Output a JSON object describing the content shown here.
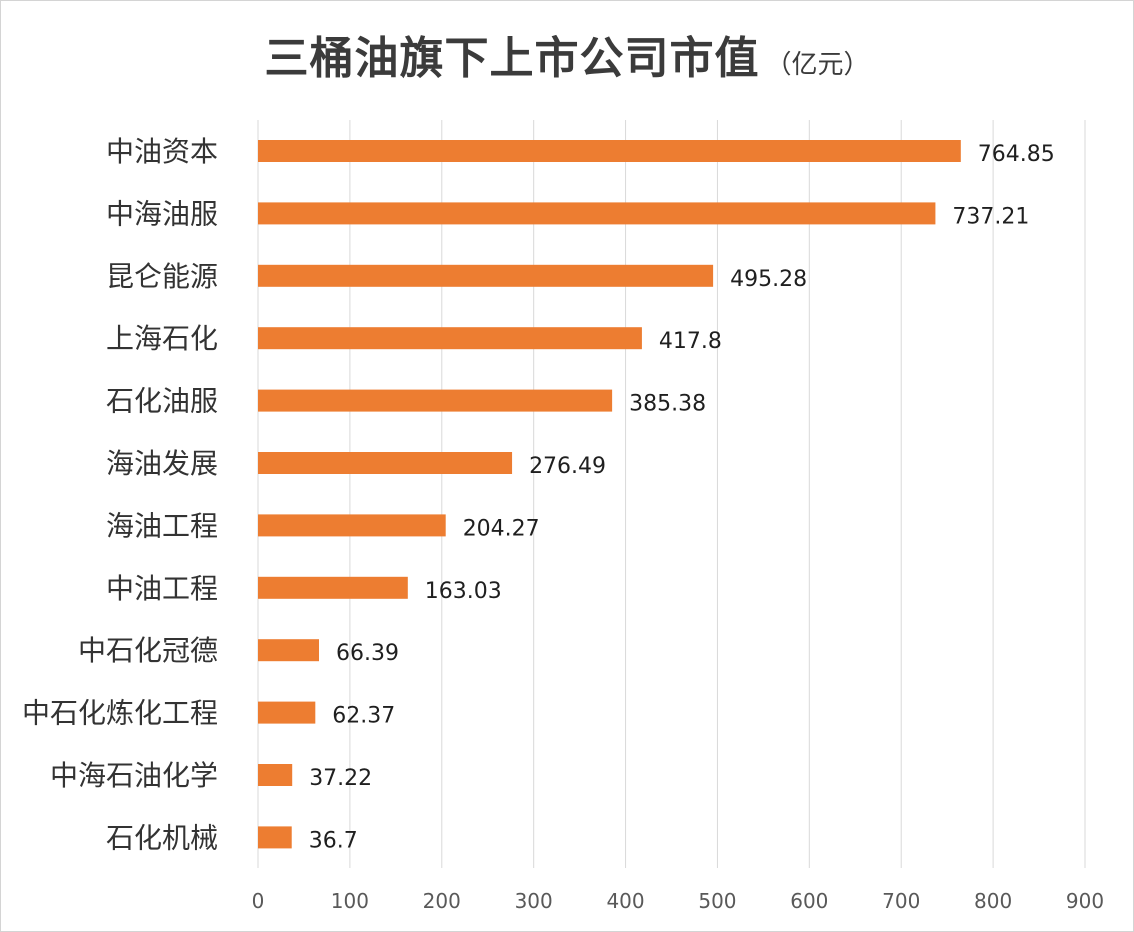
{
  "chart_data": {
    "type": "bar",
    "orientation": "horizontal",
    "title": "三桶油旗下上市公司市值",
    "title_unit": "（亿元）",
    "categories": [
      "中油资本",
      "中海油服",
      "昆仑能源",
      "上海石化",
      "石化油服",
      "海油发展",
      "海油工程",
      "中油工程",
      "中石化冠德",
      "中石化炼化工程",
      "中海石油化学",
      "石化机械"
    ],
    "values": [
      764.85,
      737.21,
      495.28,
      417.8,
      385.38,
      276.49,
      204.27,
      163.03,
      66.39,
      62.37,
      37.22,
      36.7
    ],
    "value_labels": [
      "764.85",
      "737.21",
      "495.28",
      "417.8",
      "385.38",
      "276.49",
      "204.27",
      "163.03",
      "66.39",
      "62.37",
      "37.22",
      "36.7"
    ],
    "xlim": [
      0,
      900
    ],
    "ticks": [
      "0",
      "100",
      "200",
      "300",
      "400",
      "500",
      "600",
      "700",
      "800",
      "900"
    ],
    "xlabel": "",
    "ylabel": "",
    "grid": "vertical",
    "legend": "none",
    "bar_color": "#ed7d31"
  }
}
